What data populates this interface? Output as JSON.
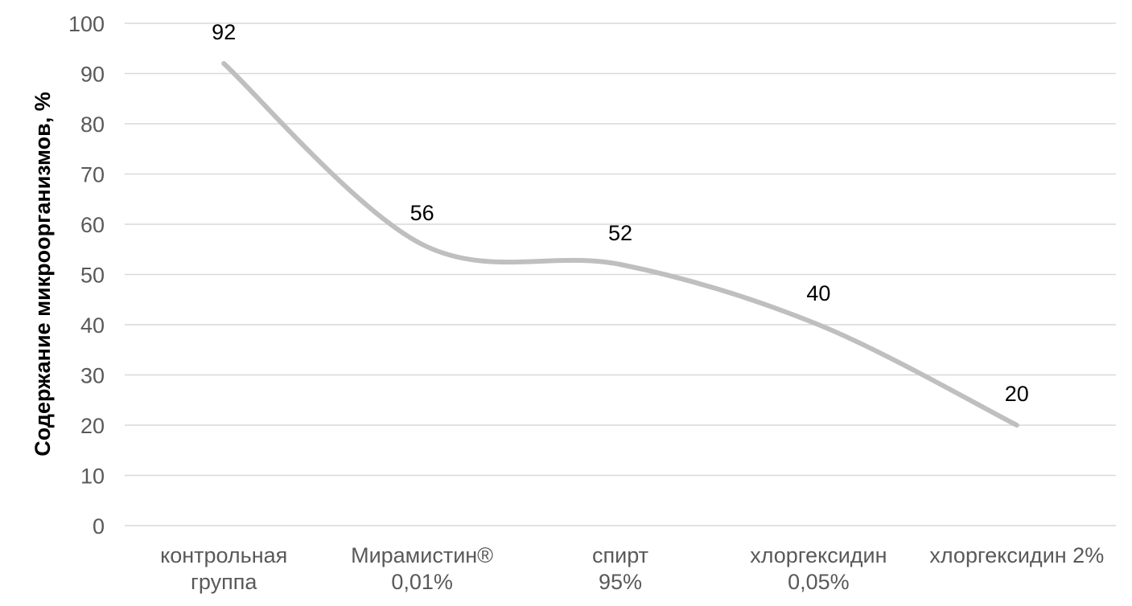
{
  "chart_data": {
    "type": "line",
    "title": "",
    "xlabel": "",
    "ylabel": "Содержание микроорганизмов, %",
    "ylim": [
      0,
      100
    ],
    "yticks": [
      0,
      10,
      20,
      30,
      40,
      50,
      60,
      70,
      80,
      90,
      100
    ],
    "grid": true,
    "smooth": true,
    "categories": [
      [
        "контрольная",
        "группа"
      ],
      [
        "Мирамистин®",
        "0,01%"
      ],
      [
        "спирт",
        "95%"
      ],
      [
        "хлоргексидин",
        "0,05%"
      ],
      [
        "хлоргексидин 2%"
      ]
    ],
    "series": [
      {
        "values": [
          92,
          56,
          52,
          40,
          20
        ],
        "color": "#bfbfbf"
      }
    ],
    "data_labels": [
      "92",
      "56",
      "52",
      "40",
      "20"
    ]
  }
}
